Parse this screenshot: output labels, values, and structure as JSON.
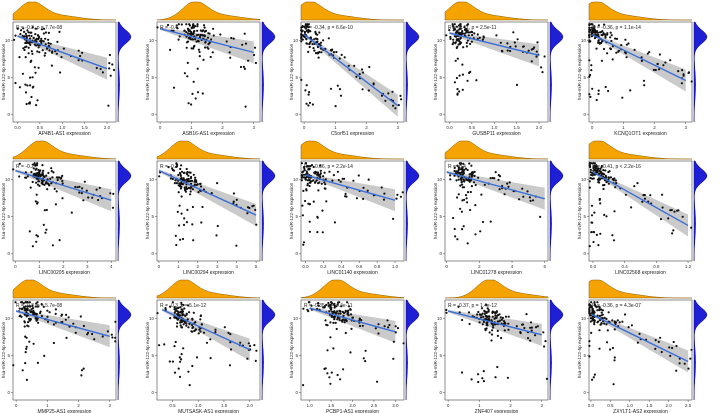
{
  "colors": {
    "top_density": "#f5a300",
    "top_density_stroke": "#8a5a00",
    "side_density": "#1f1fd6",
    "side_density_stroke": "#0a0a80",
    "point": "#111111",
    "fit_line": "#3a6ed8",
    "ci_band": "#bdbdbd",
    "panel_border": "#444444"
  },
  "chart_data": [
    {
      "type": "scatter",
      "xlabel": "AP4B1-AS1 expression",
      "ylabel": "hsa-miR-122-5p expression",
      "annotation": "R = -0.3, p = 7.7e-08",
      "xlim": [
        -0.1,
        2.2
      ],
      "ylim": [
        -1,
        12.5
      ],
      "xticks": [
        "0.0",
        "0.5",
        "1.0",
        "1.5",
        "2.0"
      ],
      "yticks": [
        "0",
        "5",
        "10"
      ],
      "fit": {
        "x0": 0.0,
        "y0": 10.6,
        "x1": 2.0,
        "y1": 6.2
      },
      "x_mode": 0.3,
      "y_mode": 10.5
    },
    {
      "type": "scatter",
      "xlabel": "ASB16-AS1 expression",
      "ylabel": "hsa-miR-122-5p expression",
      "annotation": "R = -0.4",
      "xlim": [
        -0.1,
        3.2
      ],
      "ylim": [
        -1,
        12.5
      ],
      "xticks": [
        "0",
        "1",
        "2",
        "3"
      ],
      "yticks": [
        "0",
        "5",
        "10"
      ],
      "fit": {
        "x0": 0.0,
        "y0": 11.6,
        "x1": 3.0,
        "y1": 8.4
      },
      "x_mode": 1.1,
      "y_mode": 10.5
    },
    {
      "type": "scatter",
      "xlabel": "C5orf51 expression",
      "ylabel": "hsa-miR-122-5p expression",
      "annotation": "R = -0.34, p = 6.6e-10",
      "xlim": [
        -0.1,
        3.2
      ],
      "ylim": [
        -1,
        12.5
      ],
      "xticks": [
        "0",
        "1",
        "2",
        "3"
      ],
      "yticks": [
        "0",
        "5",
        "10"
      ],
      "fit": {
        "x0": 0.0,
        "y0": 10.8,
        "x1": 3.0,
        "y1": 1.2
      },
      "x_mode": 0.15,
      "y_mode": 10.5
    },
    {
      "type": "scatter",
      "xlabel": "GUSBP11 expression",
      "ylabel": "hsa-miR-122-5p expression",
      "annotation": "R = -0.41, p = 2.5e-11",
      "xlim": [
        -0.1,
        2.2
      ],
      "ylim": [
        -1,
        12.5
      ],
      "xticks": [
        "0.0",
        "0.5",
        "1.0",
        "1.5",
        "2.0"
      ],
      "yticks": [
        "0",
        "5",
        "10"
      ],
      "fit": {
        "x0": 0.0,
        "y0": 11.0,
        "x1": 2.0,
        "y1": 8.0
      },
      "x_mode": 0.25,
      "y_mode": 10.5
    },
    {
      "type": "scatter",
      "xlabel": "KCNQ1OT1 expression",
      "ylabel": "hsa-miR-122-5p expression",
      "annotation": "R = -0.36, p = 1.1e-14",
      "xlim": [
        -0.1,
        3.2
      ],
      "ylim": [
        -1,
        12.5
      ],
      "xticks": [
        "0",
        "1",
        "2",
        "3"
      ],
      "yticks": [
        "0",
        "5",
        "10"
      ],
      "fit": {
        "x0": 0.0,
        "y0": 10.8,
        "x1": 3.0,
        "y1": 4.6
      },
      "x_mode": 0.1,
      "y_mode": 10.5
    },
    {
      "type": "scatter",
      "xlabel": "LINC00205 expression",
      "ylabel": "hsa-miR-122-5p expression",
      "annotation": "R = -0.2",
      "xlim": [
        -0.1,
        4.2
      ],
      "ylim": [
        -1,
        12.5
      ],
      "xticks": [
        "0",
        "1",
        "2",
        "3",
        "4"
      ],
      "yticks": [
        "0",
        "5",
        "10"
      ],
      "fit": {
        "x0": 0.0,
        "y0": 11.2,
        "x1": 4.0,
        "y1": 7.2
      },
      "x_mode": 1.0,
      "y_mode": 10.5
    },
    {
      "type": "scatter",
      "xlabel": "LINC00294 expression",
      "ylabel": "hsa-miR-122-5p expression",
      "annotation": "R = -0.3",
      "xlim": [
        -0.1,
        5.2
      ],
      "ylim": [
        -1,
        12.5
      ],
      "xticks": [
        "0",
        "1",
        "2",
        "3",
        "4",
        "5"
      ],
      "yticks": [
        "0",
        "5",
        "10"
      ],
      "fit": {
        "x0": 0.0,
        "y0": 11.2,
        "x1": 5.0,
        "y1": 5.2
      },
      "x_mode": 1.2,
      "y_mode": 10.5
    },
    {
      "type": "scatter",
      "xlabel": "LINC01140 expression",
      "ylabel": "hsa-miR-122-5p expression",
      "annotation": "R = -0.36, p = 2.2e-14",
      "xlim": [
        -0.05,
        1.1
      ],
      "ylim": [
        -1,
        12.5
      ],
      "xticks": [
        "0.0",
        "0.2",
        "0.4",
        "0.6",
        "0.8",
        "1.0"
      ],
      "yticks": [
        "0",
        "5",
        "10"
      ],
      "fit": {
        "x0": 0.0,
        "y0": 10.6,
        "x1": 1.0,
        "y1": 7.2
      },
      "x_mode": 0.05,
      "y_mode": 10.5
    },
    {
      "type": "scatter",
      "xlabel": "LINC01278 expression",
      "ylabel": "hsa-miR-122-5p expression",
      "annotation": "R = -0.4",
      "xlim": [
        -0.1,
        6.2
      ],
      "ylim": [
        -1,
        12.5
      ],
      "xticks": [
        "0",
        "2",
        "4",
        "6"
      ],
      "yticks": [
        "0",
        "5",
        "10"
      ],
      "fit": {
        "x0": 0.0,
        "y0": 11.0,
        "x1": 6.0,
        "y1": 7.4
      },
      "x_mode": 1.0,
      "y_mode": 10.5
    },
    {
      "type": "scatter",
      "xlabel": "LINC02568 expression",
      "ylabel": "hsa-miR-122-5p expression",
      "annotation": "R = -0.41, p < 2.2e-16",
      "xlim": [
        -0.05,
        1.25
      ],
      "ylim": [
        -1,
        12.5
      ],
      "xticks": [
        "0.0",
        "0.4",
        "0.8",
        "1.2"
      ],
      "yticks": [
        "0",
        "5",
        "10"
      ],
      "fit": {
        "x0": 0.0,
        "y0": 11.0,
        "x1": 1.2,
        "y1": 3.8
      },
      "x_mode": 0.05,
      "y_mode": 10.5
    },
    {
      "type": "scatter",
      "xlabel": "MMP25-AS1 expression",
      "ylabel": "hsa-miR-122-5p expression",
      "annotation": "R = -0.3, p = 5.7e-08",
      "xlim": [
        -0.1,
        3.2
      ],
      "ylim": [
        -1,
        12.5
      ],
      "xticks": [
        "0",
        "1",
        "2",
        "3"
      ],
      "yticks": [
        "0",
        "5",
        "10"
      ],
      "fit": {
        "x0": 0.0,
        "y0": 11.0,
        "x1": 3.0,
        "y1": 7.6
      },
      "x_mode": 0.4,
      "y_mode": 10.5
    },
    {
      "type": "scatter",
      "xlabel": "MUTSASK-AS1 expression",
      "ylabel": "hsa-miR-122-5p expression",
      "annotation": "R = -0.3, p = 5.1e-12",
      "xlim": [
        0.2,
        2.2
      ],
      "ylim": [
        -1,
        12.5
      ],
      "xticks": [
        "0.5",
        "1.0",
        "1.5",
        "2.0"
      ],
      "yticks": [
        "0",
        "5",
        "10"
      ],
      "fit": {
        "x0": 0.3,
        "y0": 11.2,
        "x1": 2.0,
        "y1": 5.8
      },
      "x_mode": 0.7,
      "y_mode": 10.5
    },
    {
      "type": "scatter",
      "xlabel": "PCBP1-AS1 expression",
      "ylabel": "hsa-miR-122-5p expression",
      "annotation": "R = -0.35, p = 4.4e-11",
      "xlim": [
        0.8,
        3.2
      ],
      "ylim": [
        -1,
        12.5
      ],
      "xticks": [
        "1.0",
        "1.5",
        "2.0",
        "2.5",
        "3.0"
      ],
      "yticks": [
        "0",
        "5",
        "10"
      ],
      "fit": {
        "x0": 1.0,
        "y0": 11.4,
        "x1": 3.0,
        "y1": 8.2
      },
      "x_mode": 1.6,
      "y_mode": 10.5
    },
    {
      "type": "scatter",
      "xlabel": "ZNF407 expression",
      "ylabel": "hsa-miR-122-5p expression",
      "annotation": "R = -0.37, p = 1.4e-12",
      "xlim": [
        -0.1,
        3.2
      ],
      "ylim": [
        -1,
        12.5
      ],
      "xticks": [
        "0",
        "1",
        "2",
        "3"
      ],
      "yticks": [
        "0",
        "5",
        "10"
      ],
      "fit": {
        "x0": 0.0,
        "y0": 11.0,
        "x1": 3.0,
        "y1": 7.8
      },
      "x_mode": 1.3,
      "y_mode": 10.5
    },
    {
      "type": "scatter",
      "xlabel": "ZXYLT1-AS2 expression",
      "ylabel": "hsa-miR-122-5p expression",
      "annotation": "R = -0.36, p = 4.3e-07",
      "xlim": [
        -0.05,
        2.6
      ],
      "ylim": [
        -1,
        12.5
      ],
      "xticks": [
        "0.0",
        "0.5",
        "1.0",
        "1.5",
        "2.0",
        "2.5"
      ],
      "yticks": [
        "0",
        "5",
        "10"
      ],
      "fit": {
        "x0": 0.0,
        "y0": 10.6,
        "x1": 2.5,
        "y1": 4.2
      },
      "x_mode": 0.1,
      "y_mode": 10.5
    }
  ]
}
